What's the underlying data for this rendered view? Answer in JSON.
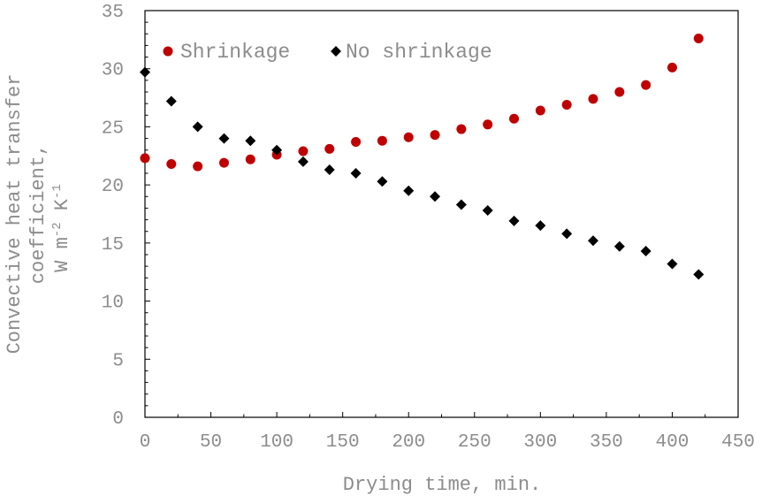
{
  "chart_data": {
    "type": "scatter",
    "title": "",
    "xlabel": "Drying time, min.",
    "ylabel_line1": "Convective heat transfer",
    "ylabel_line2": "coefficient,",
    "ylabel_line3_base_W": "W m",
    "ylabel_line3_exp1": "-2",
    "ylabel_line3_mid": " K",
    "ylabel_line3_exp2": "-1",
    "xlim": [
      0,
      450
    ],
    "ylim": [
      0,
      35
    ],
    "x_ticks": [
      0,
      50,
      100,
      150,
      200,
      250,
      300,
      350,
      400,
      450
    ],
    "y_ticks": [
      0,
      5,
      10,
      15,
      20,
      25,
      30,
      35
    ],
    "grid": false,
    "legend_position": "top-left",
    "series": [
      {
        "name": "Shrinkage",
        "marker": "circle",
        "color": "#c00000",
        "x": [
          0,
          20,
          40,
          60,
          80,
          100,
          120,
          140,
          160,
          180,
          200,
          220,
          240,
          260,
          280,
          300,
          320,
          340,
          360,
          380,
          400,
          420
        ],
        "y": [
          22.3,
          21.8,
          21.6,
          21.9,
          22.2,
          22.6,
          22.9,
          23.1,
          23.7,
          23.8,
          24.1,
          24.3,
          24.8,
          25.2,
          25.7,
          26.4,
          26.9,
          27.4,
          28.0,
          28.6,
          30.1,
          32.6
        ]
      },
      {
        "name": "No shrinkage",
        "marker": "diamond",
        "color": "#000000",
        "x": [
          0,
          20,
          40,
          60,
          80,
          100,
          120,
          140,
          160,
          180,
          200,
          220,
          240,
          260,
          280,
          300,
          320,
          340,
          360,
          380,
          400,
          420
        ],
        "y": [
          29.7,
          27.2,
          25.0,
          24.0,
          23.8,
          23.0,
          22.0,
          21.3,
          21.0,
          20.3,
          19.5,
          19.0,
          18.3,
          17.8,
          16.9,
          16.5,
          15.8,
          15.2,
          14.7,
          14.3,
          13.2,
          12.3
        ]
      }
    ]
  }
}
